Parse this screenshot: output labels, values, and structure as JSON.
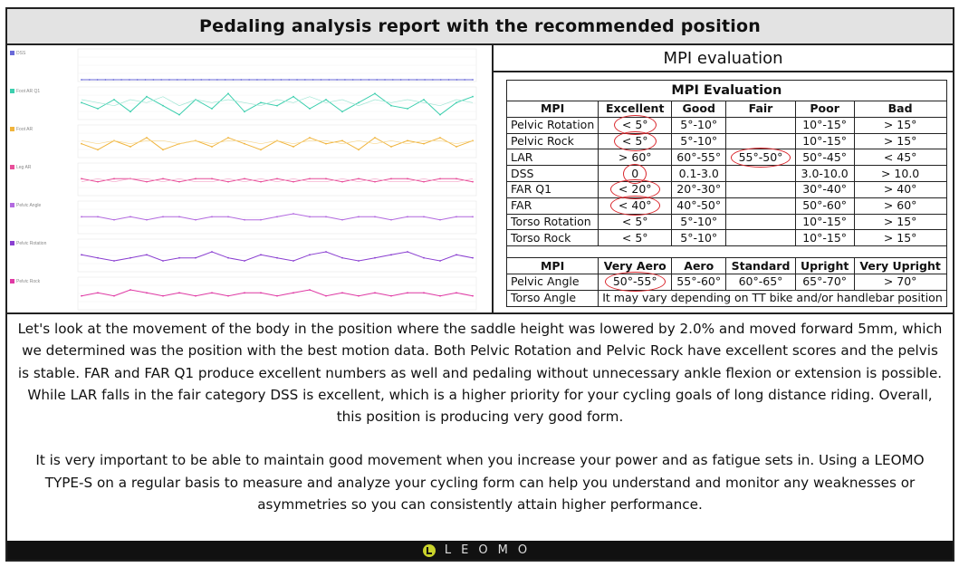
{
  "title": "Pedaling analysis report with the recommended position",
  "mpi_panel": {
    "heading": "MPI evaluation",
    "table_caption": "MPI Evaluation",
    "headers": [
      "MPI",
      "Excellent",
      "Good",
      "Fair",
      "Poor",
      "Bad"
    ],
    "rows": [
      {
        "name": "Pelvic Rotation",
        "excellent": "< 5°",
        "good": "5°-10°",
        "fair": "",
        "poor": "10°-15°",
        "bad": "> 15°",
        "circled": "excellent"
      },
      {
        "name": "Pelvic Rock",
        "excellent": "< 5°",
        "good": "5°-10°",
        "fair": "",
        "poor": "10°-15°",
        "bad": "> 15°",
        "circled": "excellent"
      },
      {
        "name": "LAR",
        "excellent": "> 60°",
        "good": "60°-55°",
        "fair": "55°-50°",
        "poor": "50°-45°",
        "bad": "< 45°",
        "circled": "fair"
      },
      {
        "name": "DSS",
        "excellent": "0",
        "good": "0.1-3.0",
        "fair": "",
        "poor": "3.0-10.0",
        "bad": "> 10.0",
        "circled": "excellent"
      },
      {
        "name": "FAR Q1",
        "excellent": "< 20°",
        "good": "20°-30°",
        "fair": "",
        "poor": "30°-40°",
        "bad": "> 40°",
        "circled": "excellent"
      },
      {
        "name": "FAR",
        "excellent": "< 40°",
        "good": "40°-50°",
        "fair": "",
        "poor": "50°-60°",
        "bad": "> 60°",
        "circled": "excellent"
      },
      {
        "name": "Torso Rotation",
        "excellent": "< 5°",
        "good": "5°-10°",
        "fair": "",
        "poor": "10°-15°",
        "bad": "> 15°",
        "circled": ""
      },
      {
        "name": "Torso Rock",
        "excellent": "< 5°",
        "good": "5°-10°",
        "fair": "",
        "poor": "10°-15°",
        "bad": "> 15°",
        "circled": ""
      }
    ],
    "position_headers": [
      "MPI",
      "Very Aero",
      "Aero",
      "Standard",
      "Upright",
      "Very Upright"
    ],
    "pelvic_angle": {
      "name": "Pelvic Angle",
      "values": [
        "50°-55°",
        "55°-60°",
        "60°-65°",
        "65°-70°",
        "> 70°"
      ]
    },
    "torso_angle": {
      "name": "Torso Angle",
      "note": "It may vary depending on TT bike and/or handlebar position"
    }
  },
  "analysis": {
    "paragraph1": "Let's look at the movement of the body in the position where the saddle height was lowered by 2.0% and moved forward 5mm, which we determined was the position with the best motion data. Both Pelvic Rotation and Pelvic Rock have excellent scores and the pelvis is stable. FAR and FAR Q1 produce excellent numbers as well and pedaling without unnecessary ankle flexion or extension is possible. While LAR falls in the fair category DSS is excellent, which is a higher priority for your cycling goals of long distance riding. Overall, this position is producing very good form.",
    "paragraph2": "It is very important to be able to maintain good movement when you increase your power and as fatigue sets in. Using a LEOMO TYPE-S on a regular basis to measure and analyze your cycling form can help you understand and monitor any weaknesses or asymmetries so you can consistently attain higher performance."
  },
  "footer": {
    "logo_text": "LEOMO",
    "logo_color": "#c9d22b"
  },
  "chart_data": [
    {
      "type": "line",
      "title": "DSS",
      "series": [
        {
          "values": [
            0,
            0,
            0,
            0,
            0,
            0,
            0,
            0,
            0,
            0,
            0,
            0,
            0,
            0,
            0,
            0,
            0,
            0,
            0,
            0,
            0,
            0,
            0,
            0,
            0,
            0,
            0,
            0,
            0,
            0,
            0,
            0,
            0,
            0,
            0,
            0,
            0,
            0,
            0,
            0,
            0,
            0,
            0,
            0,
            0,
            0,
            0,
            0,
            0,
            0
          ]
        }
      ],
      "colors": [
        "#6a6ad8"
      ]
    },
    {
      "type": "line",
      "title": "Foot AR Q1",
      "series": [
        {
          "values": [
            5,
            3,
            6,
            2,
            7,
            4,
            1,
            6,
            3,
            8,
            2,
            5,
            4,
            7,
            3,
            6,
            2,
            5,
            8,
            4,
            3,
            6,
            1,
            5,
            7
          ]
        },
        {
          "values": [
            6,
            5,
            4,
            6,
            5,
            7,
            4,
            6,
            5,
            6,
            5,
            4,
            6,
            5,
            7,
            5,
            6,
            4,
            6,
            5,
            6,
            5,
            4,
            6,
            5
          ]
        }
      ],
      "colors": [
        "#3ccfae",
        "#9fe6d4"
      ]
    },
    {
      "type": "line",
      "title": "Foot AR",
      "series": [
        {
          "values": [
            4,
            2,
            5,
            3,
            6,
            2,
            4,
            5,
            3,
            6,
            4,
            2,
            5,
            3,
            6,
            4,
            5,
            2,
            6,
            3,
            5,
            4,
            6,
            3,
            5
          ]
        },
        {
          "values": [
            5,
            4,
            5,
            4,
            5,
            5,
            4,
            5,
            4,
            5,
            5,
            4,
            5,
            4,
            5,
            5,
            4,
            5,
            4,
            5,
            4,
            5,
            5,
            4,
            5
          ]
        }
      ],
      "colors": [
        "#f0b43c",
        "#f7d68c"
      ]
    },
    {
      "type": "line",
      "title": "Leg AR",
      "series": [
        {
          "values": [
            5,
            4,
            5,
            5,
            4,
            5,
            4,
            5,
            5,
            4,
            5,
            4,
            5,
            4,
            5,
            5,
            4,
            5,
            4,
            5,
            5,
            4,
            5,
            5,
            4
          ]
        },
        {
          "values": [
            4,
            5,
            4,
            5,
            5,
            4,
            5,
            4,
            4,
            5,
            4,
            5,
            4,
            5,
            4,
            4,
            5,
            4,
            5,
            4,
            4,
            5,
            4,
            4,
            5
          ]
        }
      ],
      "colors": [
        "#e84f9a",
        "#f4a3c8"
      ]
    },
    {
      "type": "line",
      "title": "Pelvic Angle",
      "series": [
        {
          "values": [
            5,
            5,
            4,
            5,
            4,
            5,
            5,
            4,
            5,
            5,
            4,
            4,
            5,
            6,
            5,
            5,
            4,
            5,
            5,
            4,
            5,
            5,
            4,
            5,
            5
          ]
        }
      ],
      "colors": [
        "#b36ae0"
      ]
    },
    {
      "type": "line",
      "title": "Pelvic Rotation",
      "series": [
        {
          "values": [
            5,
            4,
            3,
            4,
            5,
            3,
            4,
            4,
            6,
            4,
            3,
            5,
            4,
            3,
            5,
            6,
            4,
            3,
            4,
            5,
            6,
            4,
            3,
            5,
            4
          ]
        }
      ],
      "colors": [
        "#8a3fd1"
      ]
    },
    {
      "type": "line",
      "title": "Pelvic Rock",
      "series": [
        {
          "values": [
            4,
            5,
            4,
            6,
            5,
            4,
            5,
            4,
            5,
            4,
            5,
            5,
            4,
            5,
            6,
            4,
            5,
            4,
            5,
            4,
            5,
            5,
            4,
            5,
            4
          ]
        }
      ],
      "colors": [
        "#e03aa5"
      ]
    }
  ]
}
